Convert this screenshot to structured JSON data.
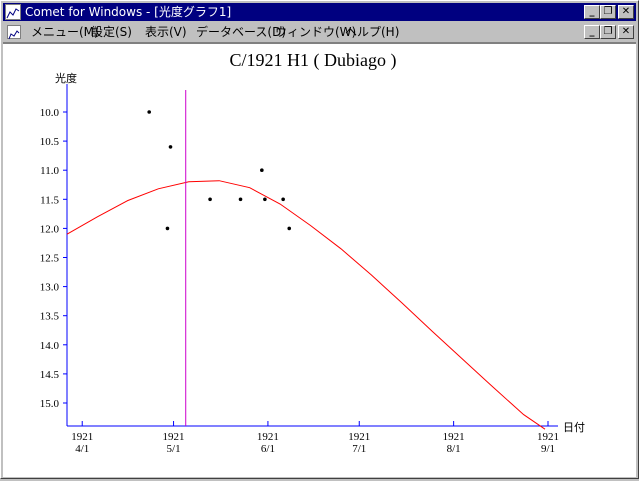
{
  "window": {
    "title": "Comet for Windows - [光度グラフ1]"
  },
  "menu": {
    "items": [
      "メニュー(M)",
      "設定(S)",
      "表示(V)",
      "データベース(D)",
      "ウィンドウ(W)",
      "ヘルプ(H)"
    ]
  },
  "buttons": {
    "minimize": "_",
    "restore": "❐",
    "close": "✕"
  },
  "chart_data": {
    "type": "scatter",
    "title": "C/1921 H1 ( Dubiago )",
    "ylabel": "光度",
    "xlabel": "日付",
    "y_ticks": [
      "10.0",
      "10.5",
      "11.0",
      "11.5",
      "12.0",
      "12.5",
      "13.0",
      "13.5",
      "14.0",
      "14.5",
      "15.0"
    ],
    "x_ticks": [
      {
        "year": "1921",
        "day": "4/1"
      },
      {
        "year": "1921",
        "day": "5/1"
      },
      {
        "year": "1921",
        "day": "6/1"
      },
      {
        "year": "1921",
        "day": "7/1"
      },
      {
        "year": "1921",
        "day": "8/1"
      },
      {
        "year": "1921",
        "day": "9/1"
      }
    ],
    "ylim": [
      15.4,
      9.8
    ],
    "xlim": [
      "1921-03-27",
      "1921-09-01"
    ],
    "points": [
      {
        "x": "1921-04-23",
        "y": 10.0
      },
      {
        "x": "1921-04-30",
        "y": 10.6
      },
      {
        "x": "1921-04-29",
        "y": 12.0
      },
      {
        "x": "1921-05-13",
        "y": 11.5
      },
      {
        "x": "1921-05-23",
        "y": 11.5
      },
      {
        "x": "1921-05-30",
        "y": 11.0
      },
      {
        "x": "1921-05-31",
        "y": 11.5
      },
      {
        "x": "1921-06-06",
        "y": 11.5
      },
      {
        "x": "1921-06-08",
        "y": 12.0
      }
    ],
    "curve": [
      {
        "x": "1921-03-27",
        "y": 12.1
      },
      {
        "x": "1921-04-06",
        "y": 11.8
      },
      {
        "x": "1921-04-16",
        "y": 11.52
      },
      {
        "x": "1921-04-26",
        "y": 11.32
      },
      {
        "x": "1921-05-06",
        "y": 11.2
      },
      {
        "x": "1921-05-16",
        "y": 11.18
      },
      {
        "x": "1921-05-26",
        "y": 11.3
      },
      {
        "x": "1921-06-05",
        "y": 11.58
      },
      {
        "x": "1921-06-15",
        "y": 11.95
      },
      {
        "x": "1921-06-25",
        "y": 12.35
      },
      {
        "x": "1921-07-05",
        "y": 12.8
      },
      {
        "x": "1921-07-15",
        "y": 13.28
      },
      {
        "x": "1921-07-25",
        "y": 13.77
      },
      {
        "x": "1921-08-04",
        "y": 14.25
      },
      {
        "x": "1921-08-14",
        "y": 14.73
      },
      {
        "x": "1921-08-24",
        "y": 15.2
      },
      {
        "x": "1921-08-31",
        "y": 15.45
      }
    ],
    "marker_date": "1921-05-05",
    "colors": {
      "axis": "#0000ff",
      "curve": "#ff0000",
      "marker": "#cc00cc",
      "points": "#000000"
    }
  }
}
